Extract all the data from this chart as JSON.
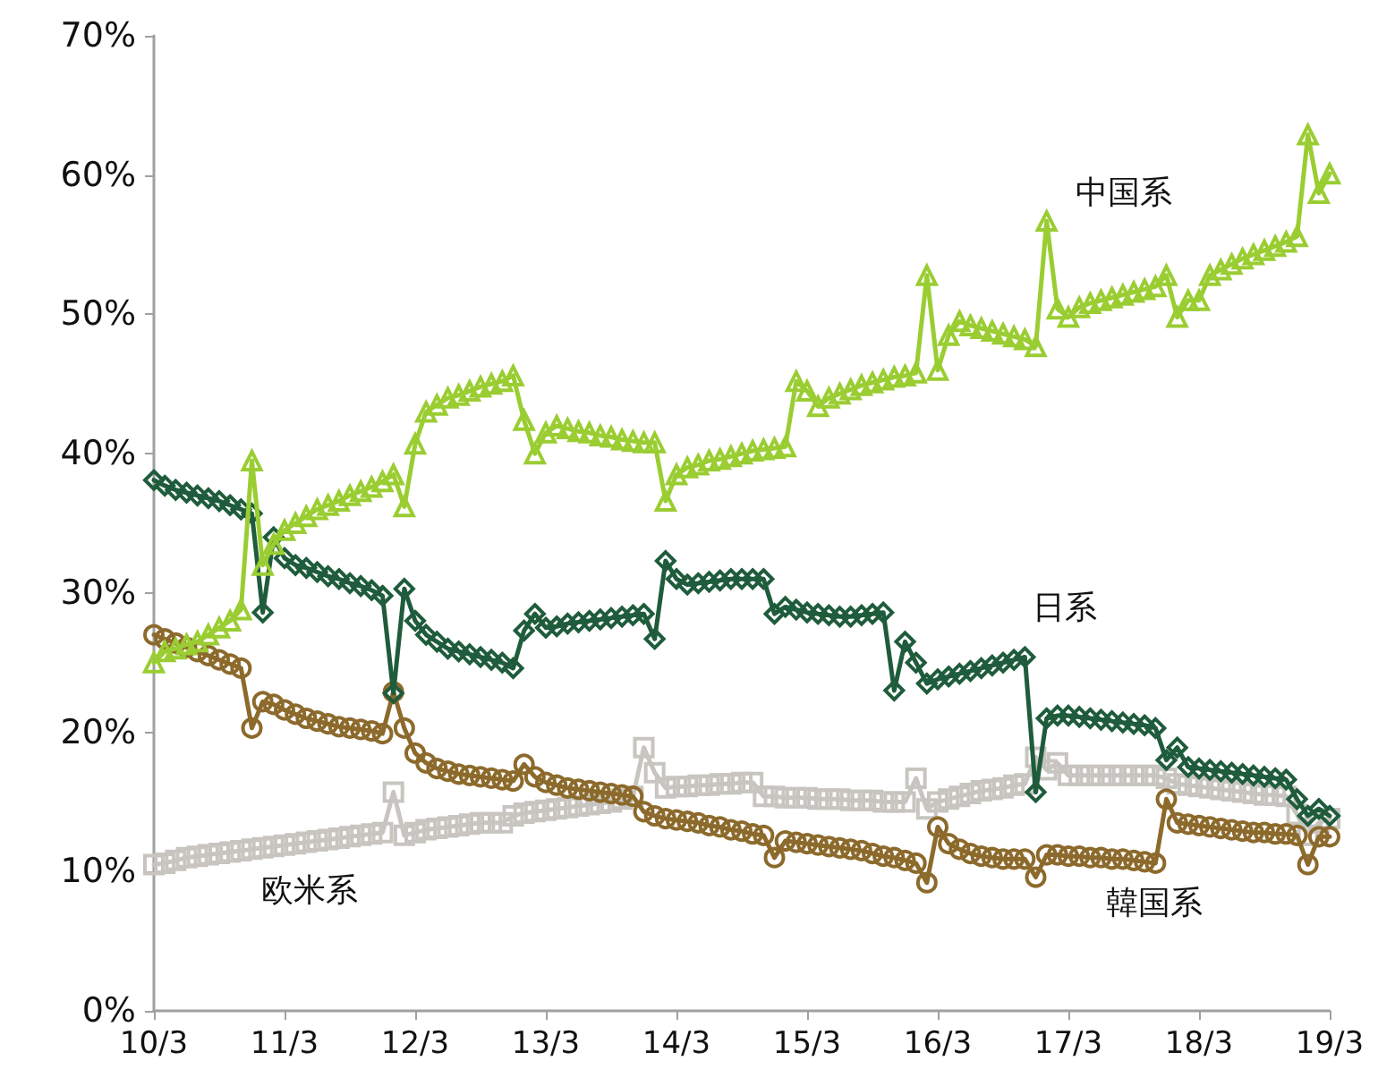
{
  "chart_data": {
    "type": "line",
    "categories": [
      "10/3",
      null,
      null,
      null,
      null,
      null,
      null,
      null,
      null,
      null,
      null,
      null,
      "11/3",
      null,
      null,
      null,
      null,
      null,
      null,
      null,
      null,
      null,
      null,
      null,
      "12/3",
      null,
      null,
      null,
      null,
      null,
      null,
      null,
      null,
      null,
      null,
      null,
      "13/3",
      null,
      null,
      null,
      null,
      null,
      null,
      null,
      null,
      null,
      null,
      null,
      "14/3",
      null,
      null,
      null,
      null,
      null,
      null,
      null,
      null,
      null,
      null,
      null,
      "15/3",
      null,
      null,
      null,
      null,
      null,
      null,
      null,
      null,
      null,
      null,
      null,
      "16/3",
      null,
      null,
      null,
      null,
      null,
      null,
      null,
      null,
      null,
      null,
      null,
      "17/3",
      null,
      null,
      null,
      null,
      null,
      null,
      null,
      null,
      null,
      null,
      null,
      "18/3",
      null,
      null,
      null,
      null,
      null,
      null,
      null,
      null,
      null,
      null,
      null,
      "19/3"
    ],
    "series": [
      {
        "name": "中国系",
        "color": "#9acd32",
        "marker": "triangle",
        "values": [
          25.0,
          25.8,
          26.0,
          26.3,
          26.5,
          27.0,
          27.5,
          28.0,
          28.8,
          39.5,
          32.0,
          33.5,
          34.5,
          35.0,
          35.5,
          36.0,
          36.3,
          36.6,
          37.0,
          37.3,
          37.6,
          38.0,
          38.5,
          36.2,
          40.7,
          43.0,
          43.5,
          44.0,
          44.2,
          44.5,
          44.8,
          45.0,
          45.2,
          45.6,
          42.4,
          40.0,
          41.5,
          42.0,
          41.8,
          41.6,
          41.5,
          41.3,
          41.2,
          41.0,
          40.9,
          40.8,
          40.8,
          36.6,
          38.5,
          39.0,
          39.2,
          39.5,
          39.6,
          39.8,
          40.0,
          40.2,
          40.3,
          40.4,
          40.5,
          45.2,
          44.5,
          43.4,
          44.0,
          44.3,
          44.6,
          44.9,
          45.1,
          45.3,
          45.5,
          45.6,
          45.8,
          52.8,
          46.0,
          48.5,
          49.5,
          49.2,
          49.0,
          48.8,
          48.6,
          48.4,
          48.2,
          47.7,
          56.7,
          50.4,
          49.8,
          50.5,
          50.8,
          51.0,
          51.2,
          51.4,
          51.6,
          51.8,
          52.0,
          52.8,
          49.8,
          51.0,
          51.0,
          52.8,
          53.2,
          53.6,
          54.0,
          54.3,
          54.6,
          54.9,
          55.2,
          55.6,
          62.9,
          58.7,
          60.1
        ]
      },
      {
        "name": "日系",
        "color": "#1f5c3c",
        "marker": "diamond",
        "values": [
          38.1,
          37.7,
          37.4,
          37.2,
          37.0,
          36.8,
          36.6,
          36.3,
          36.0,
          35.7,
          28.6,
          34.0,
          32.5,
          32.0,
          31.8,
          31.5,
          31.2,
          31.0,
          30.7,
          30.5,
          30.2,
          29.8,
          22.8,
          30.3,
          28.0,
          27.0,
          26.5,
          26.0,
          25.8,
          25.6,
          25.4,
          25.2,
          25.0,
          24.6,
          27.3,
          28.5,
          27.5,
          27.6,
          27.8,
          27.9,
          28.0,
          28.1,
          28.2,
          28.3,
          28.4,
          28.5,
          26.7,
          32.3,
          31.0,
          30.6,
          30.7,
          30.8,
          30.9,
          31.0,
          31.0,
          31.0,
          31.0,
          28.5,
          29.0,
          28.8,
          28.6,
          28.5,
          28.4,
          28.3,
          28.3,
          28.4,
          28.5,
          28.6,
          23.0,
          26.5,
          25.0,
          23.5,
          23.8,
          24.0,
          24.2,
          24.4,
          24.6,
          24.8,
          25.0,
          25.2,
          25.4,
          15.7,
          21.0,
          21.2,
          21.2,
          21.1,
          21.0,
          20.9,
          20.8,
          20.7,
          20.6,
          20.5,
          20.3,
          18.0,
          18.9,
          17.5,
          17.4,
          17.3,
          17.2,
          17.1,
          17.0,
          16.9,
          16.8,
          16.7,
          16.6,
          15.2,
          14.0,
          14.5,
          14.0
        ]
      },
      {
        "name": "韓国系",
        "color": "#8c6a2c",
        "marker": "circle",
        "values": [
          27.0,
          26.7,
          26.4,
          26.1,
          25.8,
          25.5,
          25.2,
          24.9,
          24.6,
          20.3,
          22.2,
          22.0,
          21.6,
          21.3,
          21.0,
          20.8,
          20.6,
          20.4,
          20.3,
          20.2,
          20.1,
          19.9,
          22.9,
          20.3,
          18.5,
          17.8,
          17.4,
          17.2,
          17.0,
          16.9,
          16.8,
          16.7,
          16.6,
          16.5,
          17.7,
          16.8,
          16.4,
          16.2,
          16.0,
          15.9,
          15.8,
          15.7,
          15.6,
          15.5,
          15.4,
          14.3,
          14.0,
          13.8,
          13.7,
          13.6,
          13.5,
          13.3,
          13.2,
          13.0,
          12.9,
          12.7,
          12.6,
          11.0,
          12.2,
          12.1,
          12.0,
          11.9,
          11.8,
          11.7,
          11.6,
          11.5,
          11.3,
          11.1,
          11.0,
          10.8,
          10.6,
          9.2,
          13.2,
          12.0,
          11.6,
          11.3,
          11.1,
          11.0,
          10.9,
          10.9,
          10.9,
          9.6,
          11.2,
          11.2,
          11.1,
          11.1,
          11.0,
          11.0,
          10.9,
          10.9,
          10.8,
          10.7,
          10.6,
          15.2,
          13.5,
          13.4,
          13.3,
          13.2,
          13.1,
          13.0,
          12.9,
          12.8,
          12.8,
          12.7,
          12.7,
          12.6,
          10.5,
          12.5,
          12.5
        ]
      },
      {
        "name": "欧米系",
        "color": "#c8c5c0",
        "marker": "square",
        "values": [
          10.5,
          10.6,
          10.8,
          11.0,
          11.1,
          11.2,
          11.3,
          11.4,
          11.5,
          11.6,
          11.7,
          11.8,
          11.9,
          12.0,
          12.1,
          12.2,
          12.3,
          12.4,
          12.5,
          12.6,
          12.7,
          12.8,
          15.7,
          12.6,
          12.8,
          13.0,
          13.1,
          13.2,
          13.3,
          13.4,
          13.5,
          13.5,
          13.5,
          14.0,
          14.2,
          14.3,
          14.4,
          14.5,
          14.6,
          14.7,
          14.8,
          14.9,
          15.0,
          15.2,
          15.4,
          18.9,
          17.1,
          16.0,
          16.1,
          16.1,
          16.2,
          16.2,
          16.3,
          16.3,
          16.4,
          16.4,
          15.4,
          15.4,
          15.3,
          15.3,
          15.3,
          15.2,
          15.2,
          15.2,
          15.1,
          15.1,
          15.1,
          15.0,
          15.0,
          15.0,
          16.7,
          14.5,
          15.0,
          15.2,
          15.4,
          15.6,
          15.8,
          15.9,
          16.0,
          16.2,
          16.3,
          18.2,
          17.3,
          17.8,
          16.9,
          16.9,
          16.9,
          16.9,
          16.9,
          16.9,
          16.9,
          16.9,
          16.9,
          16.7,
          16.3,
          16.2,
          16.1,
          16.0,
          15.9,
          15.8,
          15.7,
          15.6,
          15.5,
          15.5,
          15.4,
          14.1,
          12.6,
          13.5,
          13.8
        ]
      }
    ],
    "ylim": [
      0,
      70
    ],
    "yticks": [
      {
        "value": 0,
        "label": "0%"
      },
      {
        "value": 10,
        "label": "10%"
      },
      {
        "value": 20,
        "label": "20%"
      },
      {
        "value": 30,
        "label": "30%"
      },
      {
        "value": 40,
        "label": "40%"
      },
      {
        "value": 50,
        "label": "50%"
      },
      {
        "value": 60,
        "label": "60%"
      },
      {
        "value": 70,
        "label": "70%"
      }
    ],
    "grid": false,
    "legend": false
  }
}
